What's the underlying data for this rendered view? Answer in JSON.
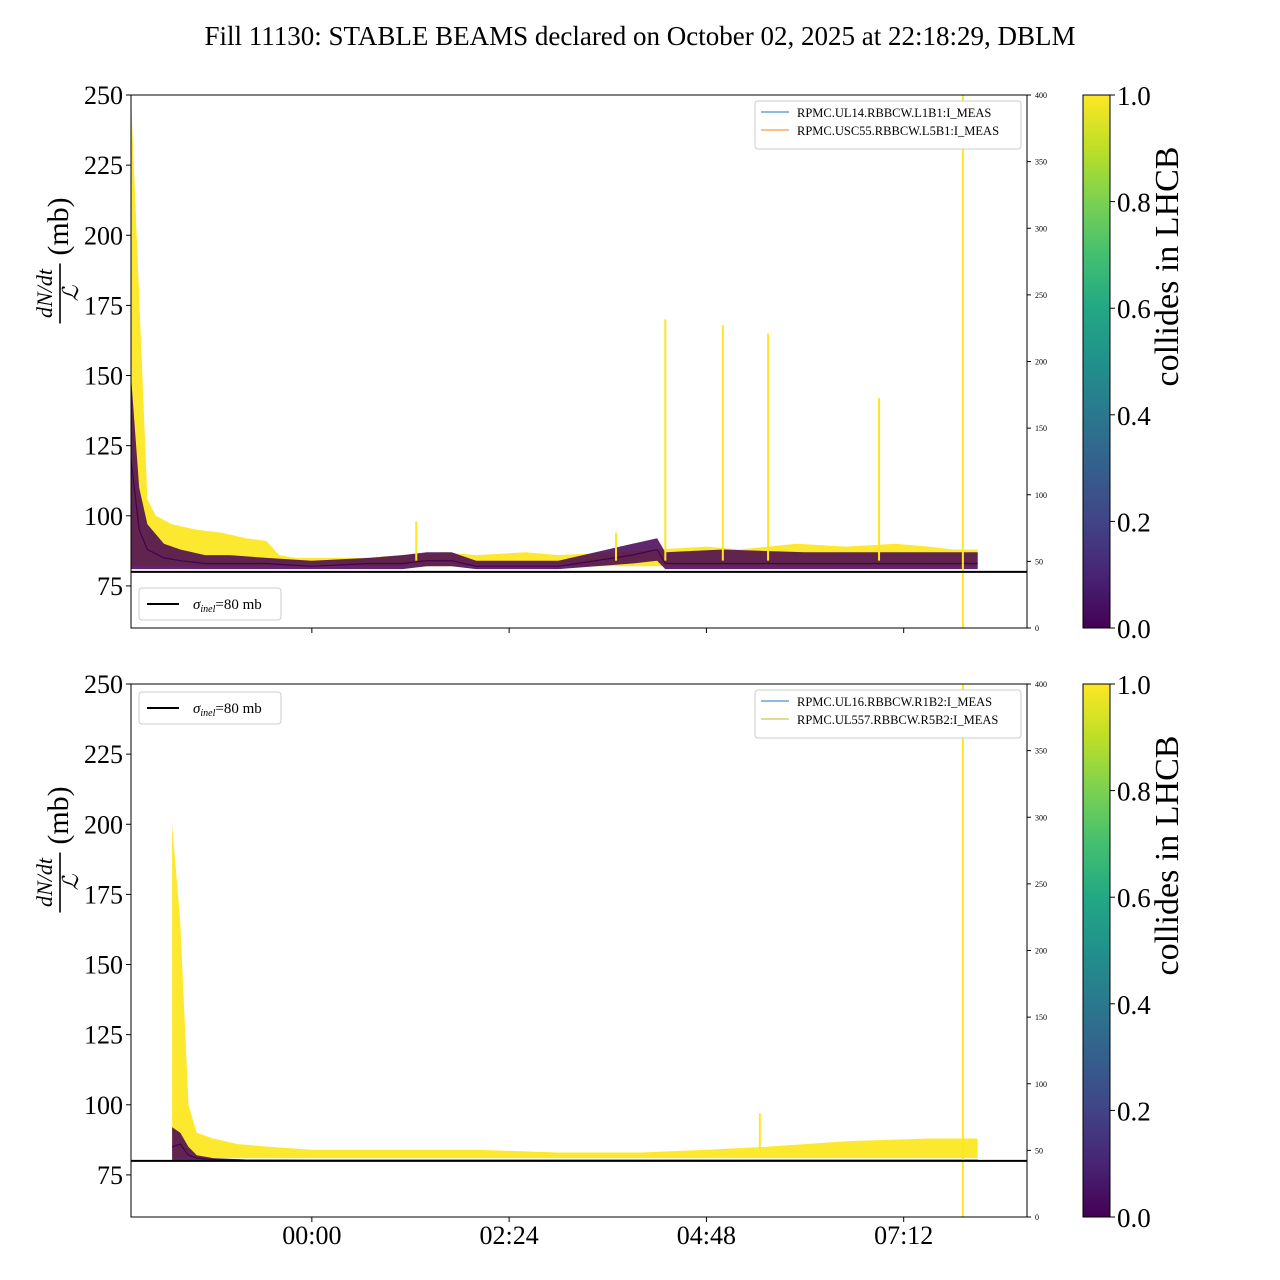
{
  "title": "Fill 11130: STABLE BEAMS declared on October 02, 2025 at 22:18:29, DBLM",
  "colors": {
    "collides": "#fde725",
    "non_colliding": "#440154",
    "reference_line": "#000000",
    "legend_series_1": "#1f77b4",
    "legend_series_2": "#ff7f0e",
    "legend_series_3": "#bcbd22"
  },
  "colorbar": {
    "label": "collides in LHCB",
    "ticks": [
      "0.0",
      "0.2",
      "0.4",
      "0.6",
      "0.8",
      "1.0"
    ],
    "colormap": "viridis"
  },
  "chart_data": [
    {
      "type": "line",
      "panel": "top",
      "ylabel": "dN/dt / ℒ (mb)",
      "ylabel_parts": {
        "numerator": "dN/dt",
        "denominator": "ℒ",
        "unit": "(mb)"
      },
      "ylim": [
        60,
        250
      ],
      "yticks": [
        "75",
        "100",
        "125",
        "150",
        "175",
        "200",
        "225",
        "250"
      ],
      "xticks": [],
      "secondary_ylim": [
        0,
        400
      ],
      "secondary_yticks": [
        "0",
        "50",
        "100",
        "150",
        "200",
        "250",
        "300",
        "350",
        "400"
      ],
      "reference_line": {
        "label_symbol": "σ",
        "label_sub": "inel",
        "label_value": "=80 mb",
        "y": 80
      },
      "legend_position": "upper right",
      "legend": [
        "RPMC.UL14.RBBCW.L1B1:I_MEAS",
        "RPMC.USC55.RBBCW.L5B1:I_MEAS"
      ],
      "sigma_legend_position": "lower left",
      "series": [
        {
          "collides": 1.0,
          "x": [
            -2.2,
            -2.0,
            -1.9,
            -1.7,
            -1.4,
            -1.1,
            -0.8,
            -0.55,
            -0.4,
            -0.2,
            0.0,
            0.6,
            1.1,
            1.6,
            2.0,
            2.6,
            3.0,
            3.7,
            4.2,
            4.8,
            5.2,
            5.9,
            6.5,
            7.1,
            7.5,
            7.8,
            8.1
          ],
          "y": [
            95,
            88,
            87,
            86,
            85,
            85,
            85,
            84,
            84,
            84,
            84,
            84,
            84,
            84,
            84,
            84,
            84,
            85,
            85,
            86,
            86,
            86,
            86,
            86,
            86,
            86,
            86
          ],
          "band_low": [
            82,
            82,
            82,
            82,
            82,
            82,
            82,
            82,
            82,
            82,
            82,
            82,
            82,
            82,
            82,
            82,
            82,
            82,
            82,
            82,
            82,
            82,
            82,
            82,
            82,
            82,
            82
          ],
          "band_high": [
            250,
            106,
            100,
            97,
            95,
            94,
            92,
            91,
            86,
            85,
            85,
            85,
            86,
            87,
            86,
            87,
            86,
            87,
            88,
            89,
            88,
            90,
            89,
            90,
            89,
            88,
            88
          ]
        },
        {
          "collides": 0.0,
          "x": [
            -2.2,
            -2.1,
            -2.0,
            -1.8,
            -1.6,
            -1.3,
            -1.0,
            -0.55,
            0.0,
            0.7,
            1.1,
            1.4,
            1.7,
            2.0,
            3.0,
            3.9,
            4.2,
            4.3,
            5.0,
            6.0,
            7.0,
            8.1
          ],
          "y": [
            120,
            95,
            88,
            85,
            84,
            83,
            83,
            83,
            82,
            83,
            83,
            84,
            84,
            82,
            82,
            86,
            88,
            83,
            83,
            83,
            83,
            83
          ],
          "band_low": [
            81,
            81,
            81,
            81,
            81,
            81,
            81,
            81,
            81,
            81,
            81,
            82,
            82,
            81,
            81,
            83,
            84,
            81,
            81,
            81,
            81,
            81
          ],
          "band_high": [
            150,
            110,
            97,
            90,
            88,
            86,
            86,
            85,
            84,
            85,
            86,
            87,
            87,
            84,
            84,
            90,
            92,
            87,
            88,
            87,
            87,
            87
          ]
        }
      ],
      "spikes": [
        {
          "x": 1.27,
          "y_max": 98
        },
        {
          "x": 3.7,
          "y_max": 94
        },
        {
          "x": 4.3,
          "y_max": 170
        },
        {
          "x": 5.0,
          "y_max": 168
        },
        {
          "x": 5.55,
          "y_max": 165
        },
        {
          "x": 6.9,
          "y_max": 142
        },
        {
          "x": 7.92,
          "y_max": 250,
          "y_min": 60
        }
      ]
    },
    {
      "type": "line",
      "panel": "bottom",
      "ylabel": "dN/dt / ℒ (mb)",
      "ylabel_parts": {
        "numerator": "dN/dt",
        "denominator": "ℒ",
        "unit": "(mb)"
      },
      "ylim": [
        60,
        250
      ],
      "yticks": [
        "75",
        "100",
        "125",
        "150",
        "175",
        "200",
        "225",
        "250"
      ],
      "xticks": [
        "00:00",
        "02:24",
        "04:48",
        "07:12"
      ],
      "xtick_values": [
        0.0,
        2.4,
        4.8,
        7.2
      ],
      "x_units": "hours relative to 00:00",
      "xlim": [
        -2.2,
        8.7
      ],
      "secondary_ylim": [
        0,
        400
      ],
      "secondary_yticks": [
        "0",
        "50",
        "100",
        "150",
        "200",
        "250",
        "300",
        "350",
        "400"
      ],
      "reference_line": {
        "label_symbol": "σ",
        "label_sub": "inel",
        "label_value": "=80 mb",
        "y": 80
      },
      "legend_position": "upper right",
      "legend": [
        "RPMC.UL16.RBBCW.R1B2:I_MEAS",
        "RPMC.UL557.RBBCW.R5B2:I_MEAS"
      ],
      "sigma_legend_position": "upper left",
      "series": [
        {
          "collides": 1.0,
          "x": [
            -1.7,
            -1.6,
            -1.5,
            -1.4,
            -1.2,
            -0.9,
            -0.5,
            0.0,
            1.0,
            2.0,
            3.0,
            4.0,
            4.8,
            5.5,
            6.5,
            7.5,
            8.1
          ],
          "y": [
            95,
            100,
            88,
            84,
            83,
            83,
            82,
            82,
            82,
            82,
            82,
            82,
            82,
            83,
            84,
            85,
            85
          ],
          "band_low": [
            81,
            81,
            81,
            81,
            81,
            81,
            81,
            81,
            81,
            81,
            81,
            81,
            81,
            81,
            81,
            81,
            81
          ],
          "band_high": [
            200,
            165,
            100,
            90,
            88,
            86,
            85,
            84,
            84,
            84,
            83,
            83,
            84,
            85,
            87,
            88,
            88
          ]
        },
        {
          "collides": 0.0,
          "x": [
            -1.7,
            -1.6,
            -1.5,
            -1.4,
            -1.2,
            -0.8,
            0.0,
            8.1
          ],
          "y": [
            85,
            86,
            82,
            81,
            80.5,
            80.3,
            80.2,
            80.2
          ],
          "band_low": [
            80,
            80,
            80,
            80,
            80,
            80,
            80,
            80
          ],
          "band_high": [
            92,
            90,
            85,
            82,
            81,
            80.5,
            80.4,
            80.4
          ]
        }
      ],
      "spikes": [
        {
          "x": 5.45,
          "y_max": 97
        },
        {
          "x": 7.92,
          "y_max": 250,
          "y_min": 60
        }
      ]
    }
  ]
}
